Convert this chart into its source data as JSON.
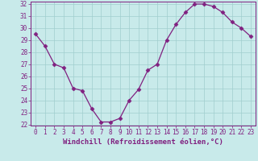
{
  "x": [
    0,
    1,
    2,
    3,
    4,
    5,
    6,
    7,
    8,
    9,
    10,
    11,
    12,
    13,
    14,
    15,
    16,
    17,
    18,
    19,
    20,
    21,
    22,
    23
  ],
  "y": [
    29.5,
    28.5,
    27.0,
    26.7,
    25.0,
    24.8,
    23.3,
    22.2,
    22.2,
    22.5,
    24.0,
    24.9,
    26.5,
    27.0,
    29.0,
    30.3,
    31.3,
    32.0,
    32.0,
    31.8,
    31.3,
    30.5,
    30.0,
    29.3
  ],
  "line_color": "#802080",
  "marker": "D",
  "marker_size": 2.5,
  "bg_color": "#c8eaea",
  "grid_color": "#a0cece",
  "xlabel": "Windchill (Refroidissement éolien,°C)",
  "ylim_min": 22,
  "ylim_max": 32,
  "xlim_min": -0.5,
  "xlim_max": 23.5,
  "yticks": [
    22,
    23,
    24,
    25,
    26,
    27,
    28,
    29,
    30,
    31,
    32
  ],
  "xticks": [
    0,
    1,
    2,
    3,
    4,
    5,
    6,
    7,
    8,
    9,
    10,
    11,
    12,
    13,
    14,
    15,
    16,
    17,
    18,
    19,
    20,
    21,
    22,
    23
  ],
  "tick_label_size": 5.5,
  "xlabel_size": 6.5,
  "line_width": 0.9
}
